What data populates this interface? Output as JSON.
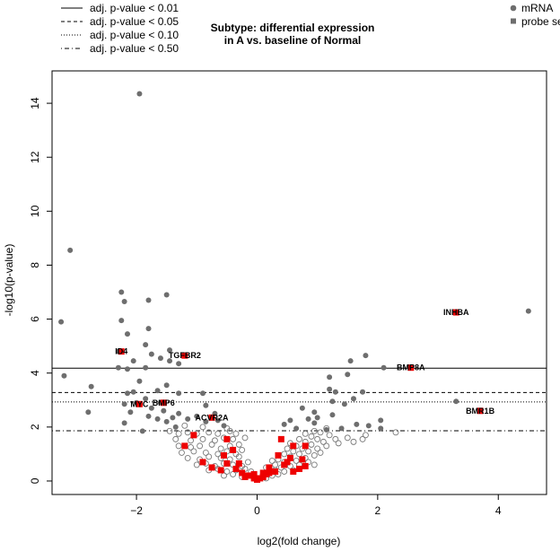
{
  "chart_data": {
    "type": "scatter",
    "title_lines": [
      "Subtype: differential expression",
      "in A vs. baseline of Normal"
    ],
    "xlabel": "log2(fold change)",
    "ylabel": "-log10(p-value)",
    "xlim": [
      -3.4,
      4.8
    ],
    "ylim": [
      -0.5,
      15.2
    ],
    "x_ticks": [
      -2,
      0,
      2,
      4
    ],
    "y_ticks": [
      0,
      2,
      4,
      6,
      8,
      10,
      12,
      14
    ],
    "threshold_legend": [
      {
        "label": "adj. p-value < 0.01",
        "style": "solid"
      },
      {
        "label": "adj. p-value < 0.05",
        "style": "dashed"
      },
      {
        "label": "adj. p-value < 0.10",
        "style": "dotted"
      },
      {
        "label": "adj. p-value < 0.50",
        "style": "dotdash"
      }
    ],
    "marker_legend": [
      {
        "label": "mRNA",
        "marker": "circle"
      },
      {
        "label": "probe set",
        "marker": "square"
      }
    ],
    "thresholds": [
      {
        "style": "solid",
        "y": 4.18
      },
      {
        "style": "dashed",
        "y": 3.28
      },
      {
        "style": "dotted",
        "y": 2.93
      },
      {
        "style": "dotdash",
        "y": 1.86
      }
    ],
    "colors": {
      "significant": "#6e6e6e",
      "open": "#7a7a7a",
      "probe": "#ee0000"
    },
    "significant_mrna": [
      [
        -1.95,
        14.35
      ],
      [
        -3.1,
        8.55
      ],
      [
        -2.25,
        7.0
      ],
      [
        -2.2,
        6.65
      ],
      [
        -1.8,
        6.7
      ],
      [
        -1.5,
        6.9
      ],
      [
        -3.25,
        5.9
      ],
      [
        -2.25,
        5.95
      ],
      [
        -2.15,
        5.45
      ],
      [
        -1.8,
        5.65
      ],
      [
        -1.85,
        5.05
      ],
      [
        -1.45,
        4.85
      ],
      [
        -2.3,
        4.8
      ],
      [
        -1.75,
        4.7
      ],
      [
        -1.6,
        4.55
      ],
      [
        -2.05,
        4.45
      ],
      [
        -1.45,
        4.45
      ],
      [
        -1.85,
        4.2
      ],
      [
        -2.3,
        4.2
      ],
      [
        -2.15,
        4.15
      ],
      [
        -1.3,
        4.35
      ],
      [
        -3.2,
        3.9
      ],
      [
        -1.95,
        3.7
      ],
      [
        -1.5,
        3.55
      ],
      [
        -2.75,
        3.5
      ],
      [
        -1.65,
        3.35
      ],
      [
        -2.05,
        3.3
      ],
      [
        -2.15,
        3.25
      ],
      [
        -1.3,
        3.25
      ],
      [
        -0.9,
        3.25
      ],
      [
        -1.85,
        3.05
      ],
      [
        -2.0,
        2.9
      ],
      [
        -1.6,
        2.9
      ],
      [
        -2.2,
        2.85
      ],
      [
        -1.75,
        2.7
      ],
      [
        -2.8,
        2.55
      ],
      [
        -2.1,
        2.55
      ],
      [
        -1.55,
        2.6
      ],
      [
        -1.3,
        2.5
      ],
      [
        -0.85,
        2.8
      ],
      [
        -1.8,
        2.4
      ],
      [
        -1.65,
        2.3
      ],
      [
        -1.4,
        2.35
      ],
      [
        -1.0,
        2.4
      ],
      [
        -0.7,
        2.5
      ],
      [
        -2.2,
        2.15
      ],
      [
        -1.5,
        2.2
      ],
      [
        -1.15,
        2.3
      ],
      [
        -0.85,
        2.2
      ],
      [
        -0.65,
        2.25
      ],
      [
        -1.35,
        2.0
      ],
      [
        -0.55,
        2.05
      ],
      [
        -1.9,
        1.85
      ],
      [
        1.55,
        4.45
      ],
      [
        1.8,
        4.65
      ],
      [
        1.5,
        3.95
      ],
      [
        1.2,
        3.85
      ],
      [
        1.2,
        3.4
      ],
      [
        1.3,
        3.3
      ],
      [
        1.75,
        3.3
      ],
      [
        1.6,
        3.05
      ],
      [
        1.25,
        2.95
      ],
      [
        0.75,
        2.7
      ],
      [
        1.45,
        2.85
      ],
      [
        0.95,
        2.55
      ],
      [
        1.25,
        2.45
      ],
      [
        1.0,
        2.35
      ],
      [
        0.85,
        2.3
      ],
      [
        0.55,
        2.25
      ],
      [
        1.65,
        2.1
      ],
      [
        0.95,
        2.15
      ],
      [
        0.45,
        2.1
      ],
      [
        1.4,
        1.95
      ],
      [
        1.15,
        1.9
      ],
      [
        0.65,
        1.95
      ],
      [
        2.05,
        2.25
      ],
      [
        1.85,
        2.05
      ],
      [
        2.05,
        1.95
      ],
      [
        2.1,
        4.2
      ],
      [
        3.3,
        2.95
      ],
      [
        4.5,
        6.3
      ]
    ],
    "open_mrna": [
      [
        -1.45,
        1.85
      ],
      [
        -1.3,
        1.75
      ],
      [
        -1.15,
        1.8
      ],
      [
        -1.0,
        1.75
      ],
      [
        -0.8,
        1.8
      ],
      [
        -0.65,
        1.75
      ],
      [
        -0.45,
        1.85
      ],
      [
        -0.35,
        1.75
      ],
      [
        -1.35,
        1.55
      ],
      [
        -1.1,
        1.5
      ],
      [
        -0.9,
        1.55
      ],
      [
        -0.7,
        1.5
      ],
      [
        -0.55,
        1.6
      ],
      [
        -0.4,
        1.55
      ],
      [
        -1.3,
        1.3
      ],
      [
        -1.1,
        1.25
      ],
      [
        -0.95,
        1.3
      ],
      [
        -0.75,
        1.35
      ],
      [
        -0.6,
        1.2
      ],
      [
        -0.45,
        1.3
      ],
      [
        -0.3,
        1.35
      ],
      [
        -1.25,
        1.05
      ],
      [
        -1.05,
        1.1
      ],
      [
        -0.85,
        1.05
      ],
      [
        -0.65,
        1.0
      ],
      [
        -0.5,
        1.1
      ],
      [
        -0.35,
        1.0
      ],
      [
        -0.25,
        1.15
      ],
      [
        -1.15,
        0.85
      ],
      [
        -0.95,
        0.8
      ],
      [
        -0.8,
        0.9
      ],
      [
        -0.6,
        0.85
      ],
      [
        -0.45,
        0.8
      ],
      [
        -0.3,
        0.9
      ],
      [
        -1.0,
        0.6
      ],
      [
        -0.85,
        0.65
      ],
      [
        -0.7,
        0.55
      ],
      [
        -0.55,
        0.65
      ],
      [
        -0.4,
        0.6
      ],
      [
        -0.25,
        0.55
      ],
      [
        -0.15,
        0.7
      ],
      [
        -0.8,
        0.4
      ],
      [
        -0.65,
        0.45
      ],
      [
        -0.5,
        0.35
      ],
      [
        -0.35,
        0.4
      ],
      [
        -0.2,
        0.45
      ],
      [
        -0.1,
        0.35
      ],
      [
        -0.55,
        0.2
      ],
      [
        -0.4,
        0.25
      ],
      [
        -0.25,
        0.15
      ],
      [
        -0.1,
        0.2
      ],
      [
        -0.9,
        2.0
      ],
      [
        -0.5,
        1.95
      ],
      [
        -0.2,
        1.6
      ],
      [
        -1.2,
        2.05
      ],
      [
        0.05,
        0.1
      ],
      [
        0.1,
        0.25
      ],
      [
        0.15,
        0.1
      ],
      [
        0.2,
        0.35
      ],
      [
        0.25,
        0.2
      ],
      [
        0.3,
        0.4
      ],
      [
        0.35,
        0.25
      ],
      [
        0.3,
        0.6
      ],
      [
        0.4,
        0.5
      ],
      [
        0.45,
        0.35
      ],
      [
        0.35,
        0.8
      ],
      [
        0.45,
        0.7
      ],
      [
        0.55,
        0.55
      ],
      [
        0.6,
        0.4
      ],
      [
        0.45,
        1.0
      ],
      [
        0.55,
        0.9
      ],
      [
        0.65,
        0.75
      ],
      [
        0.7,
        0.6
      ],
      [
        0.5,
        1.2
      ],
      [
        0.6,
        1.1
      ],
      [
        0.7,
        1.0
      ],
      [
        0.8,
        0.85
      ],
      [
        0.85,
        0.7
      ],
      [
        0.55,
        1.4
      ],
      [
        0.65,
        1.3
      ],
      [
        0.75,
        1.2
      ],
      [
        0.85,
        1.1
      ],
      [
        0.95,
        0.95
      ],
      [
        0.7,
        1.55
      ],
      [
        0.8,
        1.45
      ],
      [
        0.9,
        1.35
      ],
      [
        1.0,
        1.2
      ],
      [
        1.05,
        1.05
      ],
      [
        0.8,
        1.75
      ],
      [
        0.9,
        1.65
      ],
      [
        1.0,
        1.55
      ],
      [
        1.1,
        1.45
      ],
      [
        1.15,
        1.3
      ],
      [
        0.95,
        1.85
      ],
      [
        1.05,
        1.8
      ],
      [
        1.2,
        1.7
      ],
      [
        1.3,
        1.55
      ],
      [
        1.35,
        1.4
      ],
      [
        1.5,
        1.6
      ],
      [
        1.6,
        1.45
      ],
      [
        1.75,
        1.55
      ],
      [
        1.8,
        1.7
      ],
      [
        2.3,
        1.8
      ],
      [
        1.15,
        1.95
      ],
      [
        0.25,
        0.75
      ],
      [
        0.15,
        0.5
      ],
      [
        0.95,
        0.6
      ]
    ],
    "probe_sets": [
      [
        -0.4,
        1.15
      ],
      [
        -0.5,
        1.55
      ],
      [
        -1.05,
        1.7
      ],
      [
        -1.2,
        1.3
      ],
      [
        -0.55,
        0.95
      ],
      [
        -0.3,
        0.65
      ],
      [
        -0.35,
        0.45
      ],
      [
        -0.6,
        0.4
      ],
      [
        -0.75,
        0.5
      ],
      [
        -0.5,
        0.65
      ],
      [
        -0.9,
        0.7
      ],
      [
        -0.15,
        0.2
      ],
      [
        -0.25,
        0.3
      ],
      [
        -0.05,
        0.1
      ],
      [
        0.0,
        0.05
      ],
      [
        0.05,
        0.1
      ],
      [
        0.1,
        0.15
      ],
      [
        0.15,
        0.25
      ],
      [
        0.2,
        0.3
      ],
      [
        0.3,
        0.35
      ],
      [
        0.45,
        0.6
      ],
      [
        0.55,
        0.85
      ],
      [
        0.6,
        0.35
      ],
      [
        0.7,
        0.45
      ],
      [
        0.75,
        0.8
      ],
      [
        0.8,
        0.55
      ],
      [
        0.4,
        1.55
      ],
      [
        0.6,
        1.3
      ],
      [
        0.8,
        1.3
      ],
      [
        0.35,
        0.95
      ],
      [
        0.5,
        0.7
      ],
      [
        0.2,
        0.5
      ],
      [
        -0.2,
        0.15
      ],
      [
        -0.05,
        0.25
      ],
      [
        0.1,
        0.3
      ]
    ],
    "labeled_genes": [
      {
        "name": "INHBA",
        "x": 3.3,
        "y": 6.25
      },
      {
        "name": "ID4",
        "x": -2.25,
        "y": 4.8
      },
      {
        "name": "TGFBR2",
        "x": -1.2,
        "y": 4.65
      },
      {
        "name": "BMP8A",
        "x": 2.55,
        "y": 4.2
      },
      {
        "name": "MYC",
        "x": -1.95,
        "y": 2.85
      },
      {
        "name": "BMP6",
        "x": -1.55,
        "y": 2.9
      },
      {
        "name": "BMR1B",
        "x": 3.7,
        "y": 2.6
      },
      {
        "name": "ACVR2A",
        "x": -0.75,
        "y": 2.35
      }
    ]
  }
}
